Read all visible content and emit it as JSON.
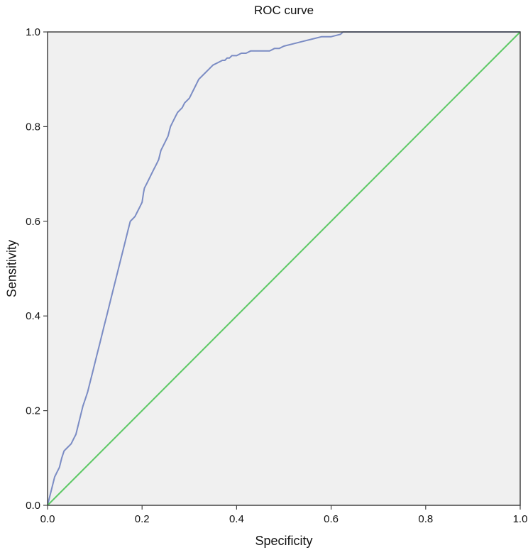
{
  "chart_data": {
    "type": "line",
    "title": "ROC curve",
    "xlabel": "Specificity",
    "ylabel": "Sensitivity",
    "xlim": [
      0.0,
      1.0
    ],
    "ylim": [
      0.0,
      1.0
    ],
    "x_ticks": [
      "0.0",
      "0.2",
      "0.4",
      "0.6",
      "0.8",
      "1.0"
    ],
    "y_ticks": [
      "0.0",
      "0.2",
      "0.4",
      "0.6",
      "0.8",
      "1.0"
    ],
    "grid": false,
    "legend": "none",
    "plot_background": "#f0f0f0",
    "series": [
      {
        "color": "#7b8cc4",
        "x": [
          0.0,
          0.005,
          0.01,
          0.015,
          0.02,
          0.025,
          0.03,
          0.035,
          0.04,
          0.05,
          0.055,
          0.06,
          0.065,
          0.07,
          0.075,
          0.08,
          0.085,
          0.09,
          0.095,
          0.1,
          0.105,
          0.11,
          0.115,
          0.12,
          0.125,
          0.13,
          0.135,
          0.14,
          0.145,
          0.15,
          0.155,
          0.16,
          0.165,
          0.17,
          0.175,
          0.18,
          0.185,
          0.19,
          0.195,
          0.2,
          0.203,
          0.205,
          0.21,
          0.215,
          0.22,
          0.225,
          0.23,
          0.235,
          0.24,
          0.245,
          0.25,
          0.255,
          0.26,
          0.265,
          0.27,
          0.275,
          0.28,
          0.285,
          0.29,
          0.3,
          0.31,
          0.32,
          0.33,
          0.34,
          0.35,
          0.36,
          0.37,
          0.375,
          0.38,
          0.385,
          0.39,
          0.4,
          0.41,
          0.42,
          0.43,
          0.45,
          0.47,
          0.48,
          0.49,
          0.5,
          0.52,
          0.54,
          0.56,
          0.58,
          0.6,
          0.62,
          0.625,
          0.63,
          0.65,
          0.7,
          0.75,
          0.78,
          0.8,
          0.82,
          0.84,
          0.9,
          1.0
        ],
        "y": [
          0.0,
          0.02,
          0.04,
          0.06,
          0.07,
          0.08,
          0.1,
          0.115,
          0.12,
          0.13,
          0.14,
          0.15,
          0.17,
          0.19,
          0.21,
          0.225,
          0.24,
          0.26,
          0.28,
          0.3,
          0.32,
          0.34,
          0.36,
          0.38,
          0.4,
          0.42,
          0.44,
          0.46,
          0.48,
          0.5,
          0.52,
          0.54,
          0.56,
          0.58,
          0.6,
          0.605,
          0.61,
          0.62,
          0.63,
          0.64,
          0.66,
          0.67,
          0.68,
          0.69,
          0.7,
          0.71,
          0.72,
          0.73,
          0.75,
          0.76,
          0.77,
          0.78,
          0.8,
          0.81,
          0.82,
          0.83,
          0.835,
          0.84,
          0.85,
          0.86,
          0.88,
          0.9,
          0.91,
          0.92,
          0.93,
          0.935,
          0.94,
          0.94,
          0.945,
          0.945,
          0.95,
          0.95,
          0.955,
          0.955,
          0.96,
          0.96,
          0.96,
          0.965,
          0.965,
          0.97,
          0.975,
          0.98,
          0.985,
          0.99,
          0.99,
          0.995,
          1.0,
          1.0,
          1.0,
          1.0,
          1.0,
          1.0,
          1.0,
          1.0,
          1.0,
          1.0,
          1.0
        ]
      },
      {
        "color": "#5cc864",
        "x": [
          0.0,
          1.0
        ],
        "y": [
          0.0,
          1.0
        ]
      }
    ]
  }
}
